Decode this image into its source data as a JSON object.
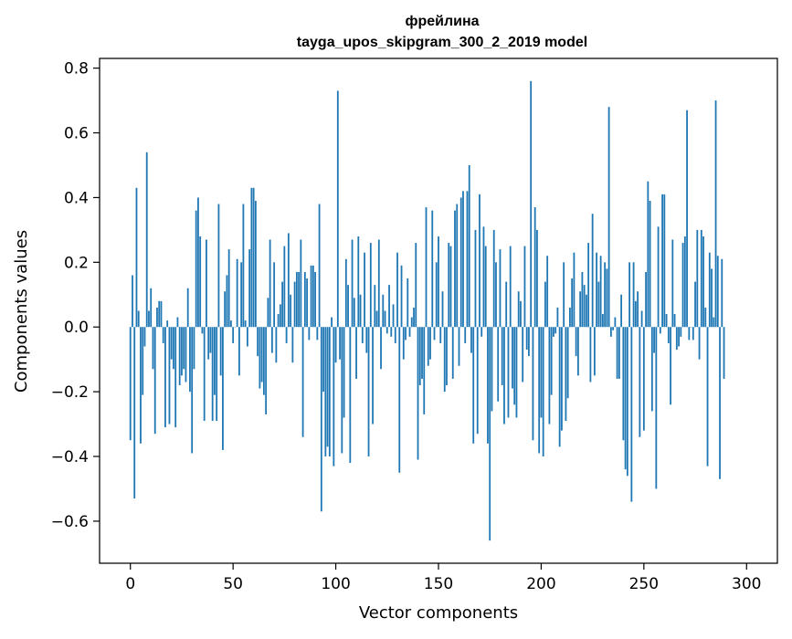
{
  "chart_data": {
    "type": "bar",
    "title": "фрейлина",
    "subtitle": "tayga_upos_skipgram_300_2_2019 model",
    "xlabel": "Vector components",
    "ylabel": "Components values",
    "xlim": [
      -15,
      315
    ],
    "ylim": [
      -0.73,
      0.83
    ],
    "xticks": [
      0,
      50,
      100,
      150,
      200,
      250,
      300
    ],
    "xtick_labels": [
      "0",
      "50",
      "100",
      "150",
      "200",
      "250",
      "300"
    ],
    "yticks": [
      -0.6,
      -0.4,
      -0.2,
      0.0,
      0.2,
      0.4,
      0.6,
      0.8
    ],
    "ytick_labels": [
      "−0.6",
      "−0.4",
      "−0.2",
      "0.0",
      "0.2",
      "0.4",
      "0.6",
      "0.8"
    ],
    "grid": false,
    "bar_color": "#1f77b4",
    "x_start": 0,
    "values": [
      -0.35,
      0.16,
      -0.53,
      0.43,
      0.05,
      -0.36,
      -0.21,
      -0.06,
      0.54,
      0.05,
      0.12,
      -0.13,
      -0.33,
      0.06,
      0.08,
      0.08,
      -0.05,
      -0.31,
      0.02,
      -0.3,
      -0.1,
      -0.13,
      -0.31,
      0.03,
      -0.18,
      -0.15,
      -0.13,
      -0.17,
      0.12,
      -0.2,
      -0.39,
      -0.13,
      0.36,
      0.4,
      0.28,
      -0.02,
      -0.29,
      0.27,
      -0.1,
      -0.08,
      -0.29,
      -0.21,
      -0.29,
      0.38,
      -0.15,
      -0.38,
      0.11,
      0.16,
      0.24,
      0.02,
      -0.05,
      0.0,
      0.21,
      -0.15,
      0.2,
      0.38,
      0.02,
      -0.06,
      0.24,
      0.43,
      0.43,
      0.39,
      -0.09,
      -0.19,
      -0.17,
      -0.21,
      -0.27,
      0.09,
      0.27,
      -0.08,
      0.2,
      -0.11,
      0.04,
      0.07,
      0.14,
      0.25,
      -0.05,
      0.29,
      0.1,
      -0.11,
      0.14,
      0.17,
      0.17,
      0.27,
      -0.34,
      0.17,
      0.15,
      -0.04,
      0.19,
      0.19,
      0.17,
      -0.04,
      0.38,
      -0.57,
      -0.2,
      -0.4,
      -0.37,
      -0.4,
      0.03,
      -0.43,
      -0.11,
      0.73,
      -0.1,
      -0.39,
      -0.28,
      0.21,
      0.13,
      -0.42,
      0.27,
      0.09,
      -0.16,
      0.28,
      0.1,
      -0.05,
      0.23,
      -0.08,
      -0.4,
      0.26,
      -0.3,
      0.13,
      0.05,
      0.27,
      -0.13,
      0.1,
      0.05,
      -0.02,
      0.13,
      -0.03,
      0.07,
      -0.05,
      0.23,
      -0.45,
      0.19,
      -0.1,
      -0.04,
      0.15,
      -0.03,
      0.03,
      0.06,
      0.26,
      -0.41,
      -0.18,
      -0.16,
      -0.27,
      0.37,
      -0.12,
      -0.1,
      0.36,
      -0.04,
      0.2,
      0.28,
      -0.05,
      0.11,
      -0.2,
      -0.18,
      0.26,
      0.25,
      -0.16,
      0.36,
      0.38,
      -0.12,
      0.4,
      0.42,
      -0.05,
      0.42,
      0.5,
      -0.08,
      -0.36,
      0.3,
      -0.33,
      0.41,
      -0.03,
      0.31,
      0.25,
      -0.36,
      -0.66,
      -0.26,
      0.3,
      0.2,
      -0.23,
      0.24,
      -0.18,
      -0.3,
      0.14,
      -0.28,
      0.25,
      -0.19,
      -0.24,
      -0.28,
      0.11,
      0.08,
      -0.17,
      0.25,
      -0.07,
      -0.09,
      0.76,
      -0.35,
      0.37,
      0.3,
      -0.39,
      -0.28,
      -0.4,
      0.14,
      0.22,
      -0.3,
      -0.21,
      -0.03,
      -0.02,
      0.06,
      -0.37,
      -0.32,
      0.2,
      -0.29,
      -0.22,
      0.06,
      0.15,
      0.23,
      -0.09,
      -0.15,
      0.11,
      0.17,
      0.13,
      0.1,
      0.26,
      -0.17,
      0.35,
      -0.15,
      0.23,
      0.14,
      0.22,
      0.04,
      0.2,
      0.18,
      0.68,
      -0.03,
      -0.01,
      0.03,
      -0.16,
      -0.16,
      0.1,
      -0.35,
      -0.44,
      -0.46,
      0.2,
      -0.54,
      0.2,
      0.08,
      0.11,
      -0.34,
      0.05,
      -0.32,
      0.17,
      0.45,
      0.39,
      -0.26,
      -0.08,
      -0.5,
      0.31,
      -0.02,
      0.41,
      0.41,
      0.04,
      -0.05,
      -0.24,
      0.27,
      0.04,
      -0.07,
      -0.06,
      -0.03,
      0.26,
      0.28,
      0.67,
      -0.04,
      0.0,
      -0.04,
      0.14,
      0.3,
      -0.1,
      0.3,
      0.28,
      0.06,
      -0.43,
      0.23,
      0.18,
      0.03,
      0.7,
      0.22,
      -0.47,
      0.21,
      -0.16
    ]
  }
}
